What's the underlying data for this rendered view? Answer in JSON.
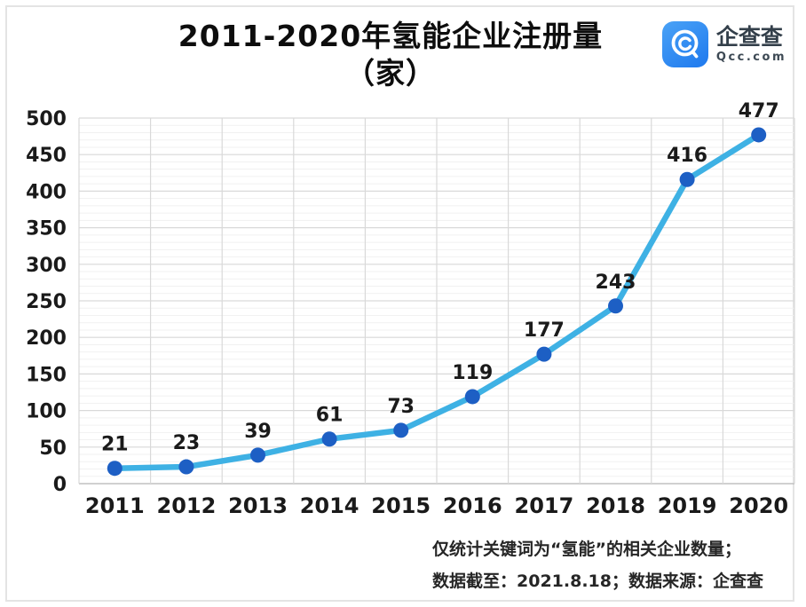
{
  "header": {
    "title_line1": "2011-2020年氢能企业注册量",
    "title_line2": "（家）"
  },
  "logo": {
    "name": "企查查",
    "domain": "Qcc.com",
    "brand_color": "#2b84f0"
  },
  "chart_data": {
    "type": "line",
    "title": "2011-2020年氢能企业注册量（家）",
    "categories": [
      "2011",
      "2012",
      "2013",
      "2014",
      "2015",
      "2016",
      "2017",
      "2018",
      "2019",
      "2020"
    ],
    "values": [
      21,
      23,
      39,
      61,
      73,
      119,
      177,
      243,
      416,
      477
    ],
    "xlabel": "",
    "ylabel": "",
    "ylim": [
      0,
      500
    ],
    "y_tick_step": 50,
    "y_minor_step": 10,
    "grid": true,
    "legend": "none",
    "line_color": "#3eb1e4",
    "marker_color": "#1d5fc4",
    "minor_grid_color": "#f1f1f1",
    "major_grid_color": "#d9d9d9",
    "axis_color": "#c0c0c0"
  },
  "footnote": {
    "line1": "仅统计关键词为“氢能”的相关企业数量；",
    "line2": "数据截至：2021.8.18；数据来源：企查查"
  }
}
